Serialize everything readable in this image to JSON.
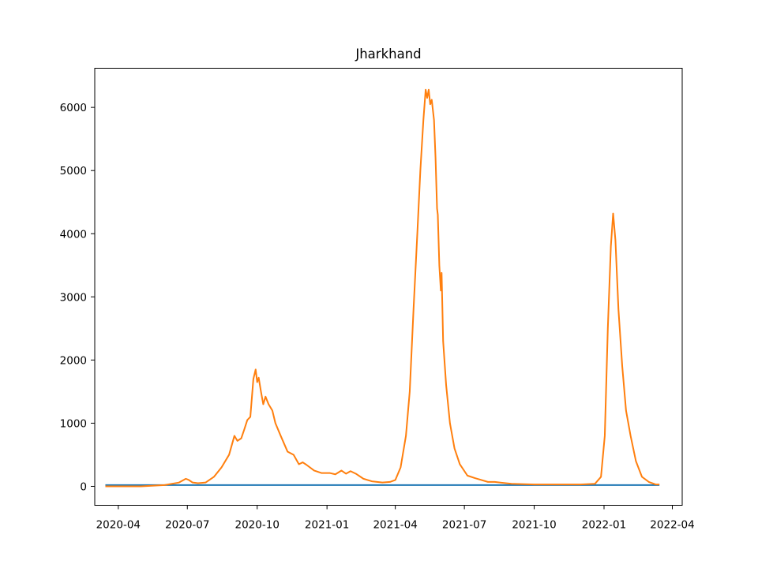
{
  "chart_data": {
    "type": "line",
    "title": "Jharkhand",
    "xlabel": "",
    "ylabel": "",
    "x_ticks": [
      "2020-04",
      "2020-07",
      "2020-10",
      "2021-01",
      "2021-04",
      "2021-07",
      "2021-10",
      "2022-01",
      "2022-04"
    ],
    "y_ticks": [
      0,
      1000,
      2000,
      3000,
      4000,
      5000,
      6000
    ],
    "xlim": [
      "2020-03-01",
      "2022-04-14"
    ],
    "ylim": [
      -300,
      6620
    ],
    "grid": false,
    "legend": "none",
    "colors": {
      "series_1": "#1f77b4",
      "series_2": "#ff7f0e"
    },
    "series": [
      {
        "points": [
          [
            "2020-03-15",
            20
          ],
          [
            "2022-03-15",
            20
          ]
        ]
      },
      {
        "points": [
          [
            "2020-03-15",
            0
          ],
          [
            "2020-05-01",
            0
          ],
          [
            "2020-06-01",
            20
          ],
          [
            "2020-06-20",
            60
          ],
          [
            "2020-06-29",
            120
          ],
          [
            "2020-07-03",
            100
          ],
          [
            "2020-07-08",
            60
          ],
          [
            "2020-07-15",
            50
          ],
          [
            "2020-07-25",
            60
          ],
          [
            "2020-08-05",
            150
          ],
          [
            "2020-08-15",
            300
          ],
          [
            "2020-08-25",
            500
          ],
          [
            "2020-09-01",
            800
          ],
          [
            "2020-09-05",
            720
          ],
          [
            "2020-09-10",
            760
          ],
          [
            "2020-09-14",
            900
          ],
          [
            "2020-09-18",
            1050
          ],
          [
            "2020-09-22",
            1100
          ],
          [
            "2020-09-26",
            1700
          ],
          [
            "2020-09-29",
            1850
          ],
          [
            "2020-10-01",
            1650
          ],
          [
            "2020-10-03",
            1720
          ],
          [
            "2020-10-06",
            1500
          ],
          [
            "2020-10-09",
            1300
          ],
          [
            "2020-10-12",
            1420
          ],
          [
            "2020-10-16",
            1300
          ],
          [
            "2020-10-21",
            1200
          ],
          [
            "2020-10-25",
            1000
          ],
          [
            "2020-11-01",
            800
          ],
          [
            "2020-11-10",
            550
          ],
          [
            "2020-11-18",
            500
          ],
          [
            "2020-11-25",
            350
          ],
          [
            "2020-11-30",
            380
          ],
          [
            "2020-12-05",
            340
          ],
          [
            "2020-12-15",
            250
          ],
          [
            "2020-12-25",
            210
          ],
          [
            "2021-01-05",
            210
          ],
          [
            "2021-01-12",
            190
          ],
          [
            "2021-01-20",
            250
          ],
          [
            "2021-01-26",
            200
          ],
          [
            "2021-02-01",
            240
          ],
          [
            "2021-02-08",
            200
          ],
          [
            "2021-02-18",
            120
          ],
          [
            "2021-03-01",
            80
          ],
          [
            "2021-03-15",
            60
          ],
          [
            "2021-03-25",
            70
          ],
          [
            "2021-04-01",
            100
          ],
          [
            "2021-04-08",
            300
          ],
          [
            "2021-04-15",
            800
          ],
          [
            "2021-04-20",
            1500
          ],
          [
            "2021-04-25",
            2800
          ],
          [
            "2021-04-30",
            4000
          ],
          [
            "2021-05-04",
            5000
          ],
          [
            "2021-05-08",
            5800
          ],
          [
            "2021-05-11",
            6280
          ],
          [
            "2021-05-13",
            6150
          ],
          [
            "2021-05-15",
            6280
          ],
          [
            "2021-05-17",
            6050
          ],
          [
            "2021-05-19",
            6120
          ],
          [
            "2021-05-22",
            5800
          ],
          [
            "2021-05-24",
            5200
          ],
          [
            "2021-05-26",
            4400
          ],
          [
            "2021-05-27",
            4300
          ],
          [
            "2021-05-29",
            3500
          ],
          [
            "2021-05-31",
            3100
          ],
          [
            "2021-06-01",
            3380
          ],
          [
            "2021-06-03",
            2300
          ],
          [
            "2021-06-07",
            1600
          ],
          [
            "2021-06-12",
            1000
          ],
          [
            "2021-06-18",
            600
          ],
          [
            "2021-06-25",
            350
          ],
          [
            "2021-07-05",
            170
          ],
          [
            "2021-07-15",
            130
          ],
          [
            "2021-08-01",
            70
          ],
          [
            "2021-08-10",
            70
          ],
          [
            "2021-09-01",
            40
          ],
          [
            "2021-10-01",
            30
          ],
          [
            "2021-11-01",
            30
          ],
          [
            "2021-12-01",
            30
          ],
          [
            "2021-12-20",
            40
          ],
          [
            "2021-12-28",
            150
          ],
          [
            "2022-01-02",
            800
          ],
          [
            "2022-01-06",
            2500
          ],
          [
            "2022-01-10",
            3800
          ],
          [
            "2022-01-13",
            4320
          ],
          [
            "2022-01-16",
            3900
          ],
          [
            "2022-01-20",
            2800
          ],
          [
            "2022-01-25",
            1900
          ],
          [
            "2022-01-30",
            1200
          ],
          [
            "2022-02-05",
            800
          ],
          [
            "2022-02-12",
            400
          ],
          [
            "2022-02-20",
            150
          ],
          [
            "2022-03-01",
            70
          ],
          [
            "2022-03-10",
            30
          ],
          [
            "2022-03-15",
            30
          ]
        ]
      }
    ]
  }
}
